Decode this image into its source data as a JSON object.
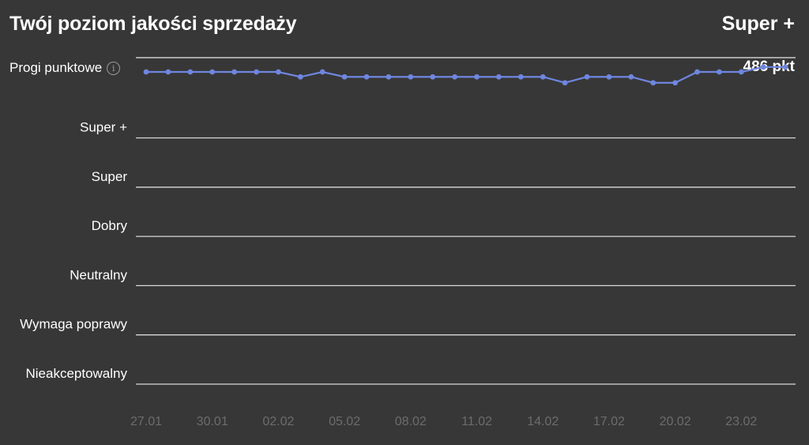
{
  "header": {
    "title": "Twój poziom jakości sprzedaży",
    "level": "Super +",
    "thresholds_label": "Progi punktowe",
    "info_icon": "info-icon",
    "points": "486 pkt"
  },
  "colors": {
    "background": "#373737",
    "line": "#6f86e0",
    "grid": "#d8d8d8",
    "tick": "#6c6c6c"
  },
  "chart_data": {
    "type": "line",
    "categories": [
      "Nieakceptowalny",
      "Wymaga poprawy",
      "Neutralny",
      "Dobry",
      "Super",
      "Super +"
    ],
    "x_ticks": [
      "27.01",
      "30.01",
      "02.02",
      "05.02",
      "08.02",
      "11.02",
      "14.02",
      "17.02",
      "20.02",
      "23.02"
    ],
    "x": [
      "27.01",
      "28.01",
      "29.01",
      "30.01",
      "31.01",
      "01.02",
      "02.02",
      "03.02",
      "04.02",
      "05.02",
      "06.02",
      "07.02",
      "08.02",
      "09.02",
      "10.02",
      "11.02",
      "12.02",
      "13.02",
      "14.02",
      "15.02",
      "16.02",
      "17.02",
      "18.02",
      "19.02",
      "20.02",
      "21.02",
      "22.02",
      "23.02",
      "24.02",
      "25.02"
    ],
    "series": [
      {
        "values": [
          6.34,
          6.34,
          6.34,
          6.34,
          6.34,
          6.34,
          6.34,
          6.24,
          6.34,
          6.24,
          6.24,
          6.24,
          6.24,
          6.24,
          6.24,
          6.24,
          6.24,
          6.24,
          6.24,
          6.12,
          6.24,
          6.24,
          6.24,
          6.12,
          6.12,
          6.34,
          6.34,
          6.34,
          6.44,
          6.44
        ]
      }
    ],
    "ylim": [
      0,
      6.63
    ],
    "grid": true,
    "legend": "none"
  }
}
